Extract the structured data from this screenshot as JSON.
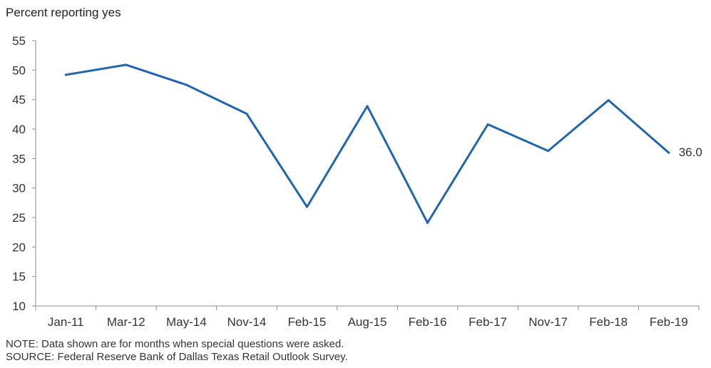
{
  "chart_data": {
    "type": "line",
    "ylabel": "Percent reporting yes",
    "xlabel": "",
    "ylim": [
      10,
      55
    ],
    "yticks": [
      10,
      15,
      20,
      25,
      30,
      35,
      40,
      45,
      50,
      55
    ],
    "ytick_labels": [
      "10",
      "15",
      "20",
      "25",
      "30",
      "35",
      "40",
      "45",
      "50",
      "55"
    ],
    "categories": [
      "Jan-11",
      "Mar-12",
      "May-14",
      "Nov-14",
      "Feb-15",
      "Aug-15",
      "Feb-16",
      "Feb-17",
      "Nov-17",
      "Feb-18",
      "Feb-19"
    ],
    "series": [
      {
        "values": [
          49.2,
          50.9,
          47.5,
          42.6,
          26.8,
          43.9,
          24.1,
          40.8,
          36.3,
          44.9,
          36.0
        ],
        "color": "#2166ac"
      }
    ],
    "annotations": [
      {
        "text": "36.0",
        "category": "Feb-19",
        "value": 36.0
      }
    ],
    "grid": false,
    "legend": "none"
  },
  "notes": {
    "note": "NOTE: Data shown are for months when special questions were asked.",
    "source": "SOURCE: Federal Reserve Bank of Dallas Texas Retail Outlook Survey."
  }
}
